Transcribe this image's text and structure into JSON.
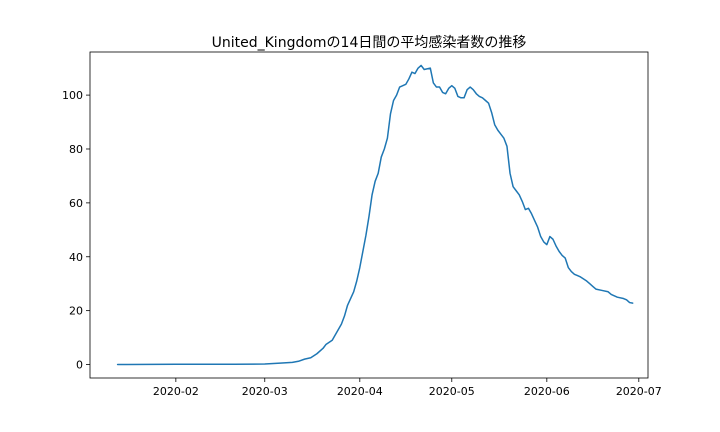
{
  "chart_data": {
    "type": "line",
    "title": "United_Kingdomの14日間の平均感染者数の推移",
    "xlabel": "",
    "ylabel": "",
    "x_axis": "date",
    "xlim": [
      "2020-01-04",
      "2020-07-04"
    ],
    "ylim": [
      -5,
      116
    ],
    "x_ticks": [
      {
        "date": "2020-02-01",
        "label": "2020-02"
      },
      {
        "date": "2020-03-01",
        "label": "2020-03"
      },
      {
        "date": "2020-04-01",
        "label": "2020-04"
      },
      {
        "date": "2020-05-01",
        "label": "2020-05"
      },
      {
        "date": "2020-06-01",
        "label": "2020-06"
      },
      {
        "date": "2020-07-01",
        "label": "2020-07"
      }
    ],
    "y_ticks": [
      0,
      20,
      40,
      60,
      80,
      100
    ],
    "grid": false,
    "line_color": "#1f77b4",
    "series": [
      {
        "points": [
          [
            "2020-01-13",
            0
          ],
          [
            "2020-02-01",
            0.1
          ],
          [
            "2020-02-20",
            0.1
          ],
          [
            "2020-03-01",
            0.2
          ],
          [
            "2020-03-06",
            0.5
          ],
          [
            "2020-03-10",
            0.8
          ],
          [
            "2020-03-12",
            1.2
          ],
          [
            "2020-03-14",
            2.0
          ],
          [
            "2020-03-16",
            2.5
          ],
          [
            "2020-03-18",
            4.0
          ],
          [
            "2020-03-20",
            6.0
          ],
          [
            "2020-03-21",
            7.5
          ],
          [
            "2020-03-23",
            9.0
          ],
          [
            "2020-03-24",
            11.0
          ],
          [
            "2020-03-26",
            15.0
          ],
          [
            "2020-03-27",
            18.0
          ],
          [
            "2020-03-28",
            22.0
          ],
          [
            "2020-03-30",
            27.0
          ],
          [
            "2020-03-31",
            31.0
          ],
          [
            "2020-04-01",
            36.0
          ],
          [
            "2020-04-02",
            42.0
          ],
          [
            "2020-04-03",
            48.0
          ],
          [
            "2020-04-04",
            55.0
          ],
          [
            "2020-04-05",
            63.0
          ],
          [
            "2020-04-06",
            68.0
          ],
          [
            "2020-04-07",
            71.0
          ],
          [
            "2020-04-08",
            77.0
          ],
          [
            "2020-04-09",
            80.0
          ],
          [
            "2020-04-10",
            84.0
          ],
          [
            "2020-04-11",
            93.0
          ],
          [
            "2020-04-12",
            98.0
          ],
          [
            "2020-04-13",
            100.0
          ],
          [
            "2020-04-14",
            103.0
          ],
          [
            "2020-04-16",
            104.0
          ],
          [
            "2020-04-17",
            106.0
          ],
          [
            "2020-04-18",
            108.5
          ],
          [
            "2020-04-19",
            108.0
          ],
          [
            "2020-04-20",
            110.0
          ],
          [
            "2020-04-21",
            111.0
          ],
          [
            "2020-04-22",
            109.5
          ],
          [
            "2020-04-24",
            110.0
          ],
          [
            "2020-04-25",
            104.5
          ],
          [
            "2020-04-26",
            103.0
          ],
          [
            "2020-04-27",
            103.0
          ],
          [
            "2020-04-28",
            101.0
          ],
          [
            "2020-04-29",
            100.5
          ],
          [
            "2020-04-30",
            102.5
          ],
          [
            "2020-05-01",
            103.5
          ],
          [
            "2020-05-02",
            102.5
          ],
          [
            "2020-05-03",
            99.5
          ],
          [
            "2020-05-04",
            99.0
          ],
          [
            "2020-05-05",
            99.0
          ],
          [
            "2020-05-06",
            102.0
          ],
          [
            "2020-05-07",
            103.0
          ],
          [
            "2020-05-08",
            102.0
          ],
          [
            "2020-05-09",
            100.5
          ],
          [
            "2020-05-10",
            99.5
          ],
          [
            "2020-05-11",
            99.0
          ],
          [
            "2020-05-12",
            98.0
          ],
          [
            "2020-05-13",
            97.0
          ],
          [
            "2020-05-14",
            93.5
          ],
          [
            "2020-05-15",
            89.0
          ],
          [
            "2020-05-16",
            87.0
          ],
          [
            "2020-05-17",
            85.5
          ],
          [
            "2020-05-18",
            84.0
          ],
          [
            "2020-05-19",
            81.0
          ],
          [
            "2020-05-20",
            71.0
          ],
          [
            "2020-05-21",
            66.0
          ],
          [
            "2020-05-22",
            64.5
          ],
          [
            "2020-05-23",
            63.0
          ],
          [
            "2020-05-24",
            60.5
          ],
          [
            "2020-05-25",
            57.5
          ],
          [
            "2020-05-26",
            58.0
          ],
          [
            "2020-05-27",
            56.0
          ],
          [
            "2020-05-28",
            53.5
          ],
          [
            "2020-05-29",
            51.0
          ],
          [
            "2020-05-30",
            47.5
          ],
          [
            "2020-05-31",
            45.5
          ],
          [
            "2020-06-01",
            44.5
          ],
          [
            "2020-06-02",
            47.5
          ],
          [
            "2020-06-03",
            46.5
          ],
          [
            "2020-06-04",
            44.0
          ],
          [
            "2020-06-05",
            42.0
          ],
          [
            "2020-06-06",
            40.5
          ],
          [
            "2020-06-07",
            39.5
          ],
          [
            "2020-06-08",
            36.0
          ],
          [
            "2020-06-09",
            34.5
          ],
          [
            "2020-06-10",
            33.5
          ],
          [
            "2020-06-11",
            33.0
          ],
          [
            "2020-06-12",
            32.5
          ],
          [
            "2020-06-14",
            31.0
          ],
          [
            "2020-06-15",
            30.0
          ],
          [
            "2020-06-16",
            29.0
          ],
          [
            "2020-06-17",
            28.0
          ],
          [
            "2020-06-19",
            27.5
          ],
          [
            "2020-06-21",
            27.0
          ],
          [
            "2020-06-22",
            26.0
          ],
          [
            "2020-06-23",
            25.5
          ],
          [
            "2020-06-24",
            25.0
          ],
          [
            "2020-06-26",
            24.5
          ],
          [
            "2020-06-27",
            24.0
          ],
          [
            "2020-06-28",
            23.0
          ],
          [
            "2020-06-29",
            22.8
          ]
        ]
      }
    ]
  }
}
